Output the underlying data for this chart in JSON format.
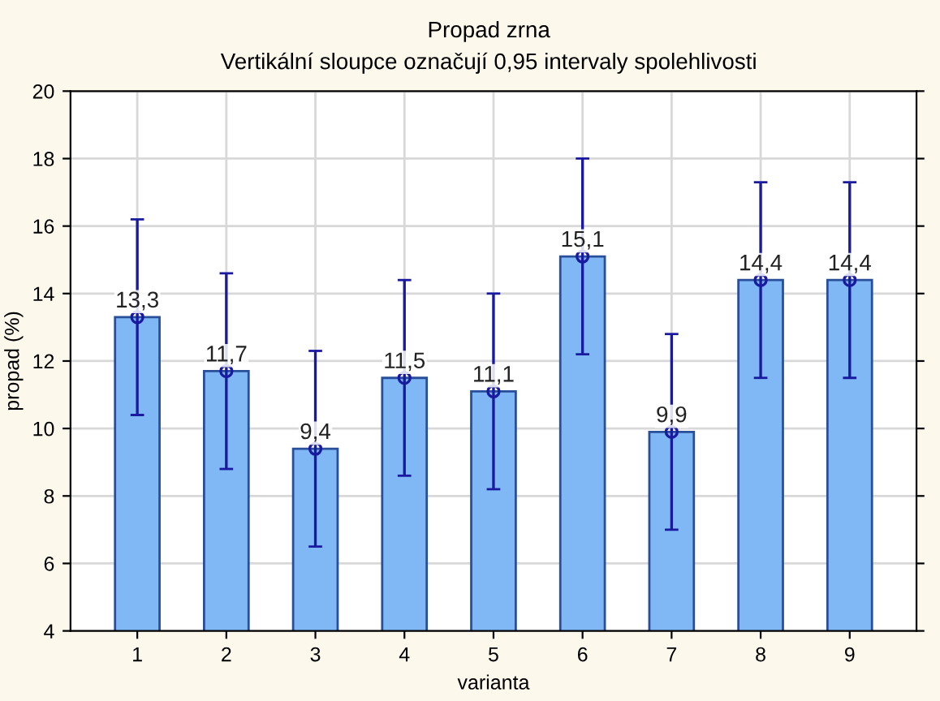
{
  "chart_data": {
    "type": "bar",
    "title": "Propad zrna",
    "subtitle": "Vertikální sloupce označují 0,95 intervaly spolehlivosti",
    "xlabel": "varianta",
    "ylabel": "propad (%)",
    "categories": [
      "1",
      "2",
      "3",
      "4",
      "5",
      "6",
      "7",
      "8",
      "9"
    ],
    "series": [
      {
        "color": "#7fb8f5",
        "values": [
          13.3,
          11.7,
          9.4,
          11.5,
          11.1,
          15.1,
          9.9,
          14.4,
          14.4
        ],
        "value_labels": [
          "13,3",
          "11,7",
          "9,4",
          "11,5",
          "11,1",
          "15,1",
          "9,9",
          "14,4",
          "14,4"
        ],
        "errors": [
          2.9,
          2.9,
          2.9,
          2.9,
          2.9,
          2.9,
          2.9,
          2.9,
          2.9
        ]
      },
      {
        "type": "scatter",
        "color": "#1a1aa0",
        "x": [
          "1",
          "2",
          "3",
          "4",
          "5",
          "6",
          "7",
          "8",
          "9"
        ],
        "values": [
          13.3,
          11.7,
          9.4,
          11.5,
          11.1,
          15.1,
          9.9,
          14.4,
          14.4
        ],
        "marker": "circle"
      }
    ],
    "grid": true,
    "ylim": [
      4,
      20
    ],
    "yticks": [
      4,
      6,
      8,
      10,
      12,
      14,
      16,
      18,
      20
    ]
  }
}
